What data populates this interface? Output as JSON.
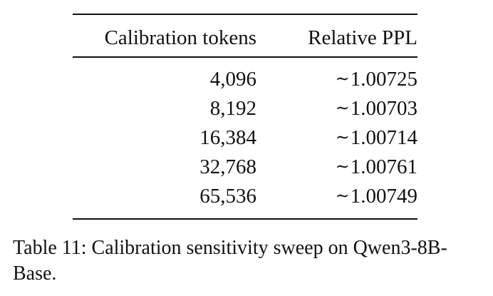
{
  "table": {
    "headers": [
      "Calibration tokens",
      "Relative PPL"
    ],
    "rows": [
      {
        "tokens": "4,096",
        "tilde": "∼",
        "ppl": "1.00725"
      },
      {
        "tokens": "8,192",
        "tilde": "∼",
        "ppl": "1.00703"
      },
      {
        "tokens": "16,384",
        "tilde": "∼",
        "ppl": "1.00714"
      },
      {
        "tokens": "32,768",
        "tilde": "∼",
        "ppl": "1.00761"
      },
      {
        "tokens": "65,536",
        "tilde": "∼",
        "ppl": "1.00749"
      }
    ]
  },
  "caption": {
    "line1": "Table 11: Calibration sensitivity sweep on Qwen3-8B-",
    "line2": "Base."
  }
}
